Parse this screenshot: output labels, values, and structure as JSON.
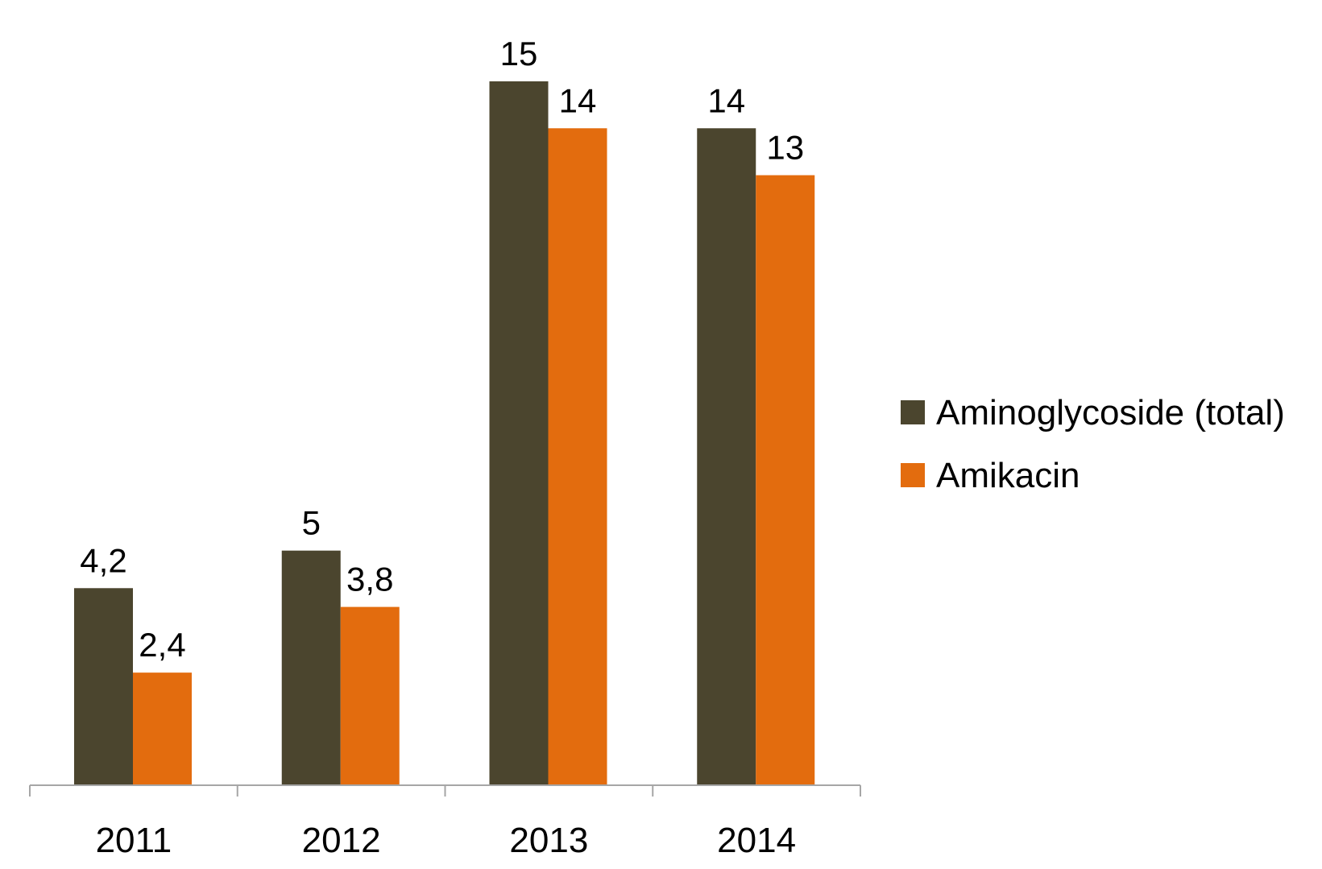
{
  "chart_data": {
    "type": "bar",
    "categories": [
      "2011",
      "2012",
      "2013",
      "2014"
    ],
    "series": [
      {
        "name": "Aminoglycoside (total)",
        "values": [
          4.2,
          5,
          15,
          14
        ],
        "labels": [
          "4,2",
          "5",
          "15",
          "14"
        ],
        "color": "#4b452e"
      },
      {
        "name": "Amikacin",
        "values": [
          2.4,
          3.8,
          14,
          13
        ],
        "labels": [
          "2,4",
          "3,8",
          "14",
          "13"
        ],
        "color": "#e36c0e"
      }
    ],
    "ylim": [
      0,
      15
    ],
    "grid": false,
    "legend_position": "right",
    "axis_color": "#a6a6a6"
  }
}
